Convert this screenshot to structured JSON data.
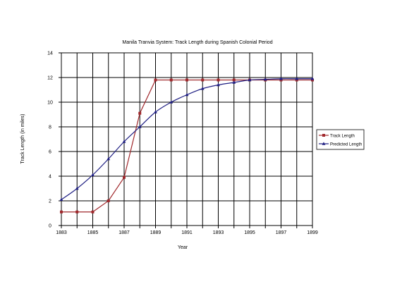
{
  "chart_data": {
    "type": "line",
    "title": "Manila Tranvia System: Track Length during Spanish Colonial Period",
    "xlabel": "Year",
    "ylabel": "Track Length  (in miles)",
    "xlim": [
      1883,
      1899
    ],
    "ylim": [
      0,
      14
    ],
    "x_ticks": [
      "1883",
      "1885",
      "1887",
      "1889",
      "1891",
      "1893",
      "1895",
      "1897",
      "1899"
    ],
    "y_ticks": [
      "0",
      "2",
      "4",
      "6",
      "8",
      "10",
      "12",
      "14"
    ],
    "grid": true,
    "legend_position": "right",
    "x": [
      1883,
      1884,
      1885,
      1886,
      1887,
      1888,
      1889,
      1890,
      1891,
      1892,
      1893,
      1894,
      1895,
      1896,
      1897,
      1898,
      1899
    ],
    "series": [
      {
        "name": "Track Length",
        "color": "#a0282c",
        "marker": "square",
        "values": [
          1.1,
          1.1,
          1.1,
          2.0,
          3.9,
          9.1,
          11.8,
          11.8,
          11.8,
          11.8,
          11.8,
          11.8,
          11.8,
          11.8,
          11.8,
          11.8,
          11.8
        ]
      },
      {
        "name": "Predicted Length",
        "color": "#1e1e82",
        "marker": "triangle",
        "values": [
          2.1,
          3.0,
          4.1,
          5.4,
          6.8,
          8.0,
          9.2,
          10.0,
          10.6,
          11.1,
          11.4,
          11.6,
          11.8,
          11.85,
          11.9,
          11.9,
          11.9
        ]
      }
    ]
  }
}
